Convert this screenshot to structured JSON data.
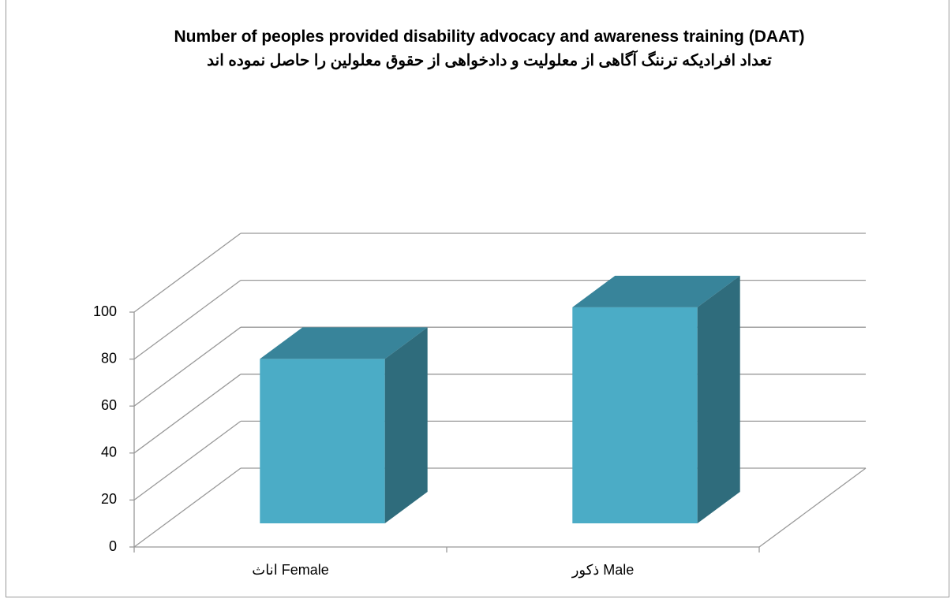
{
  "chart_data": {
    "type": "bar3d",
    "title": "Number of peoples provided disability advocacy and awareness training (DAAT)",
    "subtitle": "تعداد افرادیکه ترننگ آگاهی از معلولیت و دادخواهی از حقوق معلولین را حاصل نموده اند",
    "categories": [
      "اناث Female",
      "ذکور Male"
    ],
    "values": [
      70,
      92
    ],
    "color": "#4bacc6",
    "ylim": [
      0,
      100
    ],
    "yticks": [
      0,
      20,
      40,
      60,
      80,
      100
    ],
    "grid": true
  }
}
